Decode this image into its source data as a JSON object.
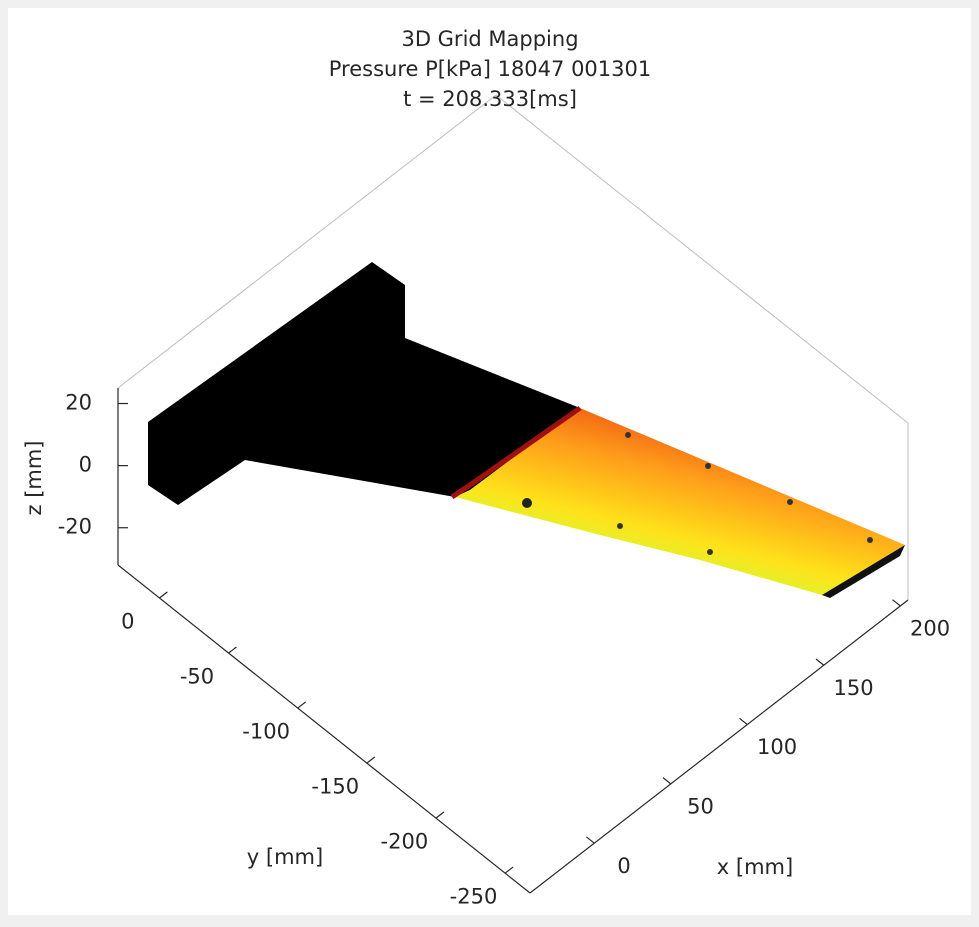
{
  "chart_data": {
    "type": "surface3d",
    "title": [
      "3D Grid Mapping",
      "Pressure P[kPa] 18047 001301",
      "t = 208.333[ms]"
    ],
    "xlabel": "x [mm]",
    "ylabel": "y [mm]",
    "zlabel": "z [mm]",
    "xlim": [
      -42,
      205
    ],
    "ylim": [
      -268,
      30
    ],
    "zlim": [
      -32,
      25
    ],
    "xticks": [
      0,
      50,
      100,
      150,
      200
    ],
    "yticks": [
      0,
      -50,
      -100,
      -150,
      -200,
      -250
    ],
    "zticks": [
      -20,
      0,
      20
    ]
  }
}
